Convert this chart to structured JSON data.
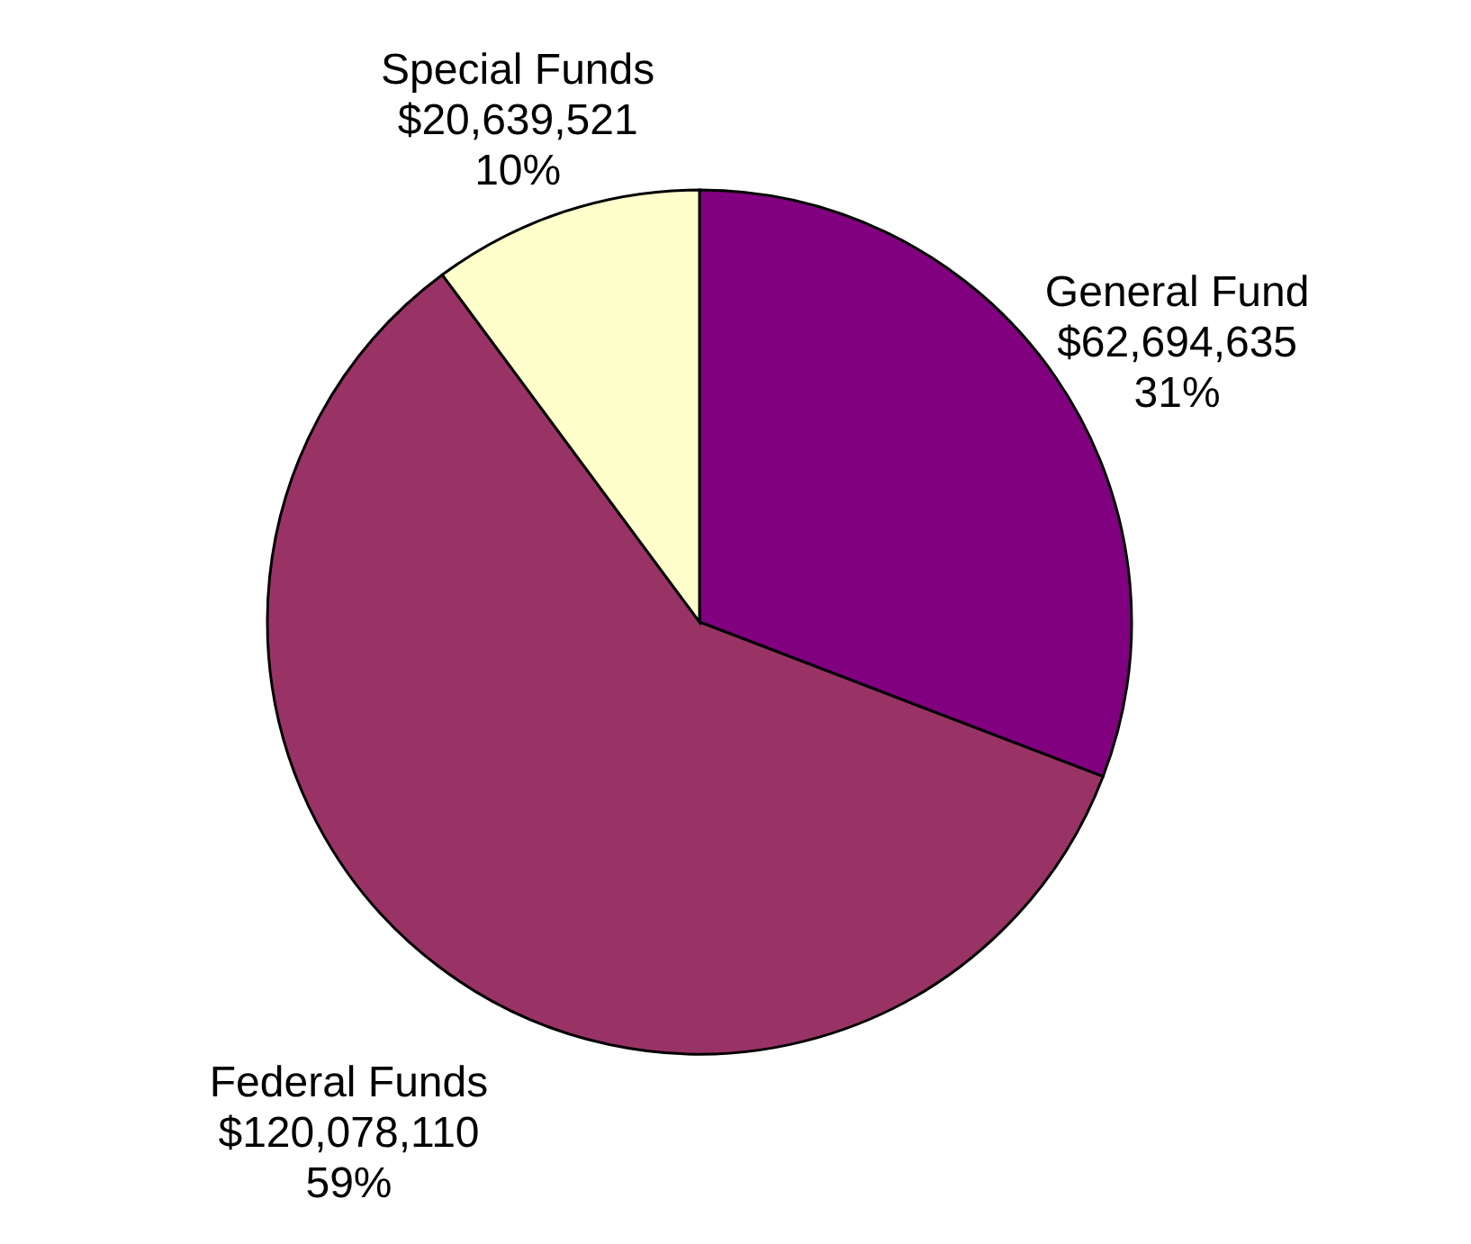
{
  "chart_data": {
    "type": "pie",
    "categories": [
      "General Fund",
      "Federal Funds",
      "Special Funds"
    ],
    "values": [
      62694635,
      120078110,
      20639521
    ],
    "value_labels": [
      "$62,694,635\n31%",
      "$120,078,110\n59%",
      "$20,639,521\n10%"
    ],
    "colors": [
      "#800080",
      "#993366",
      "#ffffcc"
    ],
    "legend": false
  }
}
